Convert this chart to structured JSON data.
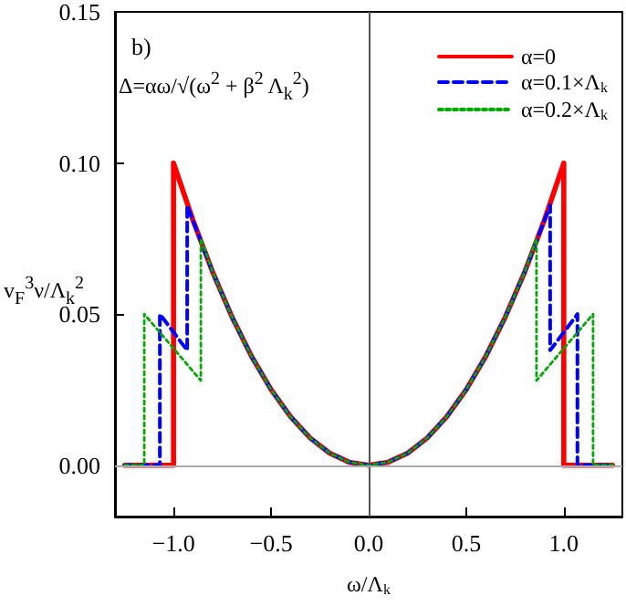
{
  "chart_data": {
    "type": "line",
    "xlabel": "ω/Λ$_{k}$",
    "ylabel": "v$_{F}$$^{3}$ν/Λ$_{k}$$^{2}$",
    "annotations": [
      "b)",
      "Δ=αω/√(ω$^{2}$ + β$^{2}$ Λ$_{k}$$^{2}$)"
    ],
    "xlim": [
      -1.3,
      1.3
    ],
    "ylim": [
      -0.017,
      0.15
    ],
    "xticks": [
      {
        "value": -1,
        "label": "−1.0"
      },
      {
        "value": -0.5,
        "label": "−0.5"
      },
      {
        "value": 0,
        "label": "0.0"
      },
      {
        "value": 0.5,
        "label": "0.5"
      },
      {
        "value": 1,
        "label": "1.0"
      }
    ],
    "yticks": [
      {
        "value": 0,
        "label": "0.00"
      },
      {
        "value": 0.05,
        "label": "0.05"
      },
      {
        "value": 0.1,
        "label": "0.10"
      },
      {
        "value": 0.15,
        "label": "0.15"
      }
    ],
    "legend": "top right",
    "grid": false,
    "marker": "none",
    "ref_lines": [
      {
        "axis": "x",
        "value": 0,
        "color": "#555555"
      },
      {
        "axis": "y",
        "value": 0,
        "color": "#aaaaaa"
      }
    ],
    "series": [
      {
        "name": "α=0",
        "color": "#ff0000",
        "line_style": "solid",
        "x": [
          -1.25,
          -1.0,
          -1.0,
          -0.9,
          -0.8,
          -0.7,
          -0.6,
          -0.5,
          -0.4,
          -0.3,
          -0.2,
          -0.1,
          0,
          0.1,
          0.2,
          0.3,
          0.4,
          0.5,
          0.6,
          0.7,
          0.8,
          0.9,
          1.0,
          1.0,
          1.25
        ],
        "values": [
          0,
          0,
          0.1,
          0.081,
          0.064,
          0.049,
          0.036,
          0.025,
          0.016,
          0.009,
          0.004,
          0.001,
          0,
          0.001,
          0.004,
          0.009,
          0.016,
          0.025,
          0.036,
          0.049,
          0.064,
          0.081,
          0.1,
          0,
          0
        ]
      },
      {
        "name": "α=0.1×Λ$_{k}$",
        "color": "#0000ff",
        "line_style": "dashed",
        "x": [
          -1.25,
          -1.07,
          -1.07,
          -0.93,
          -0.93,
          -0.8,
          -0.7,
          -0.6,
          -0.5,
          -0.4,
          -0.3,
          -0.2,
          -0.1,
          0,
          0.1,
          0.2,
          0.3,
          0.4,
          0.5,
          0.6,
          0.7,
          0.8,
          0.93,
          0.93,
          1.07,
          1.07,
          1.25
        ],
        "values": [
          0,
          0,
          0.05,
          0.038,
          0.086,
          0.064,
          0.049,
          0.036,
          0.025,
          0.016,
          0.009,
          0.004,
          0.001,
          0,
          0.001,
          0.004,
          0.009,
          0.016,
          0.025,
          0.036,
          0.049,
          0.064,
          0.086,
          0.038,
          0.05,
          0,
          0
        ]
      },
      {
        "name": "α=0.2×Λ$_{k}$",
        "color": "#00aa00",
        "line_style": "dotted",
        "x": [
          -1.25,
          -1.15,
          -1.15,
          -0.86,
          -0.86,
          -0.8,
          -0.7,
          -0.6,
          -0.5,
          -0.4,
          -0.3,
          -0.2,
          -0.1,
          0,
          0.1,
          0.2,
          0.3,
          0.4,
          0.5,
          0.6,
          0.7,
          0.8,
          0.86,
          0.86,
          1.15,
          1.15,
          1.25
        ],
        "values": [
          0,
          0,
          0.05,
          0.028,
          0.075,
          0.064,
          0.049,
          0.036,
          0.025,
          0.016,
          0.009,
          0.004,
          0.001,
          0,
          0.001,
          0.004,
          0.009,
          0.016,
          0.025,
          0.036,
          0.049,
          0.064,
          0.075,
          0.028,
          0.05,
          0,
          0
        ]
      }
    ]
  }
}
